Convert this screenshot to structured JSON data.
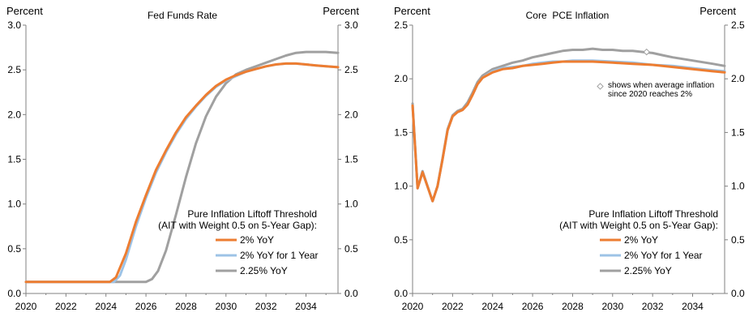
{
  "colors": {
    "orange": "#ED7D31",
    "lightblue": "#9DC3E6",
    "gray": "#A0A0A0",
    "axis": "#808080"
  },
  "chart_data": [
    {
      "type": "line",
      "title": "Fed Funds Rate",
      "ylabel_left": "Percent",
      "ylabel_right": "Percent",
      "xlim": [
        2020,
        2035.6
      ],
      "ylim": [
        0,
        3.0
      ],
      "x_ticks": [
        2020,
        2022,
        2024,
        2026,
        2028,
        2030,
        2032,
        2034
      ],
      "y_ticks": [
        "0.0",
        "0.5",
        "1.0",
        "1.5",
        "2.0",
        "2.5",
        "3.0"
      ],
      "legend": {
        "title_line1": "Pure Inflation Liftoff Threshold",
        "title_line2": "(AIT with Weight 0.5 on 5-Year Gap):",
        "entries": [
          "2% YoY",
          "2% YoY for 1 Year",
          "2.25% YoY"
        ]
      },
      "series": [
        {
          "name": "2% YoY",
          "color_key": "orange",
          "points": [
            [
              2020,
              0.13
            ],
            [
              2024.2,
              0.13
            ],
            [
              2024.5,
              0.18
            ],
            [
              2025,
              0.45
            ],
            [
              2025.5,
              0.8
            ],
            [
              2026,
              1.1
            ],
            [
              2026.5,
              1.38
            ],
            [
              2027,
              1.6
            ],
            [
              2027.5,
              1.8
            ],
            [
              2028,
              1.97
            ],
            [
              2028.5,
              2.1
            ],
            [
              2029,
              2.22
            ],
            [
              2029.5,
              2.32
            ],
            [
              2030,
              2.39
            ],
            [
              2030.5,
              2.44
            ],
            [
              2031,
              2.48
            ],
            [
              2031.5,
              2.51
            ],
            [
              2032,
              2.54
            ],
            [
              2032.5,
              2.56
            ],
            [
              2033,
              2.57
            ],
            [
              2033.5,
              2.57
            ],
            [
              2034,
              2.56
            ],
            [
              2034.5,
              2.55
            ],
            [
              2035,
              2.54
            ],
            [
              2035.6,
              2.53
            ]
          ]
        },
        {
          "name": "2% YoY for 1 Year",
          "color_key": "lightblue",
          "points": [
            [
              2020,
              0.13
            ],
            [
              2024.4,
              0.13
            ],
            [
              2024.7,
              0.2
            ],
            [
              2025,
              0.38
            ],
            [
              2025.5,
              0.75
            ],
            [
              2026,
              1.07
            ],
            [
              2026.5,
              1.35
            ],
            [
              2027,
              1.58
            ],
            [
              2027.5,
              1.78
            ],
            [
              2028,
              1.95
            ],
            [
              2028.5,
              2.09
            ],
            [
              2029,
              2.21
            ],
            [
              2029.5,
              2.31
            ],
            [
              2030,
              2.38
            ],
            [
              2030.5,
              2.43
            ],
            [
              2031,
              2.48
            ],
            [
              2031.5,
              2.51
            ],
            [
              2032,
              2.54
            ],
            [
              2032.5,
              2.56
            ],
            [
              2033,
              2.57
            ],
            [
              2033.5,
              2.57
            ],
            [
              2034,
              2.56
            ],
            [
              2034.5,
              2.55
            ],
            [
              2035,
              2.54
            ],
            [
              2035.6,
              2.53
            ]
          ]
        },
        {
          "name": "2.25% YoY",
          "color_key": "gray",
          "points": [
            [
              2020,
              0.13
            ],
            [
              2026,
              0.13
            ],
            [
              2026.3,
              0.16
            ],
            [
              2026.6,
              0.25
            ],
            [
              2027,
              0.48
            ],
            [
              2027.5,
              0.88
            ],
            [
              2028,
              1.3
            ],
            [
              2028.5,
              1.68
            ],
            [
              2029,
              1.98
            ],
            [
              2029.5,
              2.2
            ],
            [
              2030,
              2.35
            ],
            [
              2030.5,
              2.45
            ],
            [
              2031,
              2.5
            ],
            [
              2031.5,
              2.54
            ],
            [
              2032,
              2.58
            ],
            [
              2032.5,
              2.62
            ],
            [
              2033,
              2.66
            ],
            [
              2033.5,
              2.69
            ],
            [
              2034,
              2.7
            ],
            [
              2034.5,
              2.7
            ],
            [
              2035,
              2.7
            ],
            [
              2035.6,
              2.69
            ]
          ]
        }
      ]
    },
    {
      "type": "line",
      "title": "Core  PCE Inflation",
      "ylabel_left": "Percent",
      "ylabel_right": "Percent",
      "xlim": [
        2020,
        2035.6
      ],
      "ylim": [
        0,
        2.5
      ],
      "x_ticks": [
        2020,
        2022,
        2024,
        2026,
        2028,
        2030,
        2032,
        2034
      ],
      "y_ticks": [
        "0.0",
        "0.5",
        "1.0",
        "1.5",
        "2.0",
        "2.5"
      ],
      "annotation_line1": "shows when average inflation",
      "annotation_line2": "since 2020 reaches 2%",
      "marker": {
        "series": "2.25% YoY",
        "x": 2031.7,
        "y": 2.25
      },
      "legend": {
        "title_line1": "Pure Inflation Liftoff Threshold",
        "title_line2": "(AIT with Weight 0.5 on 5-Year Gap):",
        "entries": [
          "2% YoY",
          "2% YoY for 1 Year",
          "2.25% YoY"
        ]
      },
      "series": [
        {
          "name": "2% YoY",
          "color_key": "orange",
          "points": [
            [
              2020,
              1.75
            ],
            [
              2020.25,
              0.98
            ],
            [
              2020.5,
              1.13
            ],
            [
              2021,
              0.86
            ],
            [
              2021.25,
              1.0
            ],
            [
              2021.5,
              1.25
            ],
            [
              2021.75,
              1.52
            ],
            [
              2022,
              1.65
            ],
            [
              2022.25,
              1.69
            ],
            [
              2022.5,
              1.71
            ],
            [
              2022.75,
              1.76
            ],
            [
              2023,
              1.85
            ],
            [
              2023.25,
              1.95
            ],
            [
              2023.5,
              2.01
            ],
            [
              2024,
              2.06
            ],
            [
              2024.5,
              2.09
            ],
            [
              2025,
              2.1
            ],
            [
              2025.5,
              2.12
            ],
            [
              2026,
              2.13
            ],
            [
              2026.5,
              2.14
            ],
            [
              2027,
              2.15
            ],
            [
              2027.5,
              2.16
            ],
            [
              2028,
              2.16
            ],
            [
              2029,
              2.16
            ],
            [
              2030,
              2.15
            ],
            [
              2031,
              2.14
            ],
            [
              2032,
              2.13
            ],
            [
              2033,
              2.11
            ],
            [
              2034,
              2.09
            ],
            [
              2035,
              2.07
            ],
            [
              2035.6,
              2.06
            ]
          ]
        },
        {
          "name": "2% YoY for 1 Year",
          "color_key": "lightblue",
          "points": [
            [
              2020,
              1.75
            ],
            [
              2020.25,
              0.98
            ],
            [
              2020.5,
              1.13
            ],
            [
              2021,
              0.86
            ],
            [
              2021.25,
              1.0
            ],
            [
              2021.5,
              1.25
            ],
            [
              2021.75,
              1.52
            ],
            [
              2022,
              1.65
            ],
            [
              2022.25,
              1.69
            ],
            [
              2022.5,
              1.71
            ],
            [
              2022.75,
              1.76
            ],
            [
              2023,
              1.85
            ],
            [
              2023.25,
              1.95
            ],
            [
              2023.5,
              2.01
            ],
            [
              2024,
              2.07
            ],
            [
              2024.5,
              2.1
            ],
            [
              2025,
              2.11
            ],
            [
              2025.5,
              2.12
            ],
            [
              2026,
              2.14
            ],
            [
              2026.5,
              2.15
            ],
            [
              2027,
              2.16
            ],
            [
              2027.5,
              2.16
            ],
            [
              2028,
              2.17
            ],
            [
              2029,
              2.17
            ],
            [
              2030,
              2.16
            ],
            [
              2031,
              2.15
            ],
            [
              2032,
              2.13
            ],
            [
              2033,
              2.12
            ],
            [
              2034,
              2.1
            ],
            [
              2035,
              2.08
            ],
            [
              2035.6,
              2.07
            ]
          ]
        },
        {
          "name": "2.25% YoY",
          "color_key": "gray",
          "points": [
            [
              2020,
              1.77
            ],
            [
              2020.25,
              0.98
            ],
            [
              2020.5,
              1.14
            ],
            [
              2021,
              0.86
            ],
            [
              2021.25,
              1.0
            ],
            [
              2021.5,
              1.26
            ],
            [
              2021.75,
              1.53
            ],
            [
              2022,
              1.66
            ],
            [
              2022.25,
              1.7
            ],
            [
              2022.5,
              1.72
            ],
            [
              2022.75,
              1.78
            ],
            [
              2023,
              1.87
            ],
            [
              2023.25,
              1.97
            ],
            [
              2023.5,
              2.03
            ],
            [
              2024,
              2.09
            ],
            [
              2024.5,
              2.12
            ],
            [
              2025,
              2.15
            ],
            [
              2025.5,
              2.17
            ],
            [
              2026,
              2.2
            ],
            [
              2026.5,
              2.22
            ],
            [
              2027,
              2.24
            ],
            [
              2027.5,
              2.26
            ],
            [
              2028,
              2.27
            ],
            [
              2028.5,
              2.27
            ],
            [
              2029,
              2.28
            ],
            [
              2029.5,
              2.27
            ],
            [
              2030,
              2.27
            ],
            [
              2030.5,
              2.26
            ],
            [
              2031,
              2.26
            ],
            [
              2031.5,
              2.25
            ],
            [
              2032,
              2.24
            ],
            [
              2032.5,
              2.22
            ],
            [
              2033,
              2.2
            ],
            [
              2034,
              2.17
            ],
            [
              2035,
              2.14
            ],
            [
              2035.6,
              2.12
            ]
          ]
        }
      ]
    }
  ]
}
